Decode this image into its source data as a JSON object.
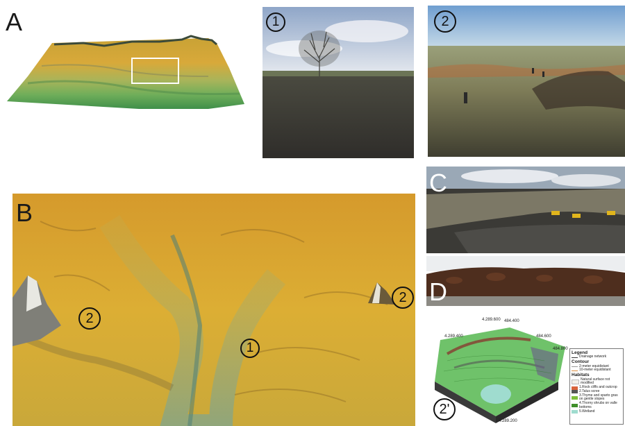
{
  "panels": {
    "A": {
      "letter": "A"
    },
    "photo1": {
      "badge": "1"
    },
    "photo2": {
      "badge": "2"
    },
    "B": {
      "letter": "B",
      "marker_left": "2",
      "marker_right": "2",
      "marker_center": "1"
    },
    "C": {
      "letter": "C"
    },
    "D": {
      "letter": "D"
    },
    "map3d": {
      "badge": "2'"
    }
  },
  "map3d_coords": [
    "4.289.600",
    "484.400",
    "4.289.400",
    "484.600",
    "484.800",
    "4.289.200"
  ],
  "legend": {
    "title": "Legend",
    "drainage": "Drainage network",
    "contour_title": "Contour",
    "contour_2m": "2-meter equidistant",
    "contour_10m": "10-meter equidistant",
    "habitats_title": "Habitats",
    "items": [
      {
        "label": "Natural surface not modified",
        "color": "#f2efe8"
      },
      {
        "label": "1.Rock cliffs and outcrop",
        "color": "#d9633a"
      },
      {
        "label": "2.Talus scree",
        "color": "#555555"
      },
      {
        "label": "3.Thyme and sparto gras on gentle slopes",
        "color": "#7fbf3a"
      },
      {
        "label": "4.Thorny shrubs on valle bottoms",
        "color": "#3f8f2a"
      },
      {
        "label": "5.Wetland",
        "color": "#9fdccf"
      }
    ]
  }
}
